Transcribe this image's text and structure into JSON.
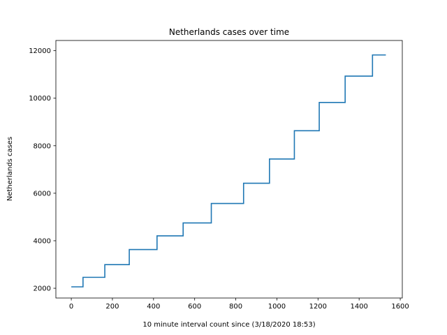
{
  "chart_data": {
    "type": "line",
    "title": "Netherlands cases over time",
    "xlabel": "10 minute interval count since (3/18/2020 18:53)",
    "ylabel": "Netherlands cases",
    "xlim": [
      -75,
      1610
    ],
    "ylim": [
      1590,
      12430
    ],
    "x_ticks": [
      0,
      200,
      400,
      600,
      800,
      1000,
      1200,
      1400,
      1600
    ],
    "y_ticks": [
      2000,
      4000,
      6000,
      8000,
      10000,
      12000
    ],
    "grid": false,
    "legend": "none",
    "series": [
      {
        "color": "#1f77b4",
        "x": [
          0,
          57,
          57,
          163,
          163,
          282,
          282,
          417,
          417,
          544,
          544,
          681,
          681,
          838,
          838,
          964,
          964,
          1085,
          1085,
          1206,
          1206,
          1332,
          1332,
          1465,
          1465,
          1530
        ],
        "y": [
          2060,
          2060,
          2460,
          2460,
          2995,
          2995,
          3630,
          3630,
          4205,
          4205,
          4750,
          4750,
          5570,
          5570,
          6420,
          6420,
          7440,
          7440,
          8630,
          8630,
          9820,
          9820,
          10930,
          10930,
          11820,
          11820
        ]
      }
    ]
  }
}
